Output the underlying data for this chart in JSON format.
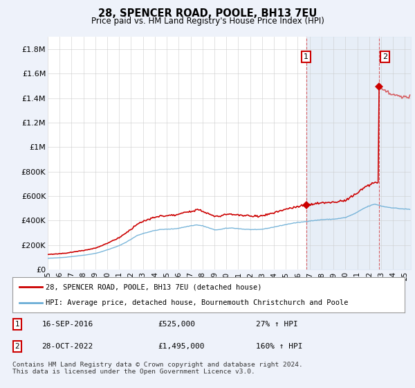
{
  "title": "28, SPENCER ROAD, POOLE, BH13 7EU",
  "subtitle": "Price paid vs. HM Land Registry's House Price Index (HPI)",
  "ylabel_ticks": [
    "£0",
    "£200K",
    "£400K",
    "£600K",
    "£800K",
    "£1M",
    "£1.2M",
    "£1.4M",
    "£1.6M",
    "£1.8M"
  ],
  "ylabel_values": [
    0,
    200000,
    400000,
    600000,
    800000,
    1000000,
    1200000,
    1400000,
    1600000,
    1800000
  ],
  "ylim": [
    0,
    1900000
  ],
  "xlim_start": 1995.0,
  "xlim_end": 2025.5,
  "x_ticks": [
    1995,
    1996,
    1997,
    1998,
    1999,
    2000,
    2001,
    2002,
    2003,
    2004,
    2005,
    2006,
    2007,
    2008,
    2009,
    2010,
    2011,
    2012,
    2013,
    2014,
    2015,
    2016,
    2017,
    2018,
    2019,
    2020,
    2021,
    2022,
    2023,
    2024,
    2025
  ],
  "hpi_line_color": "#6baed6",
  "price_line_color": "#cc0000",
  "sale1_x": 2016.71,
  "sale1_y": 525000,
  "sale2_x": 2022.83,
  "sale2_y": 1495000,
  "sale1_label": "1",
  "sale2_label": "2",
  "legend_line1": "28, SPENCER ROAD, POOLE, BH13 7EU (detached house)",
  "legend_line2": "HPI: Average price, detached house, Bournemouth Christchurch and Poole",
  "annotation1_date": "16-SEP-2016",
  "annotation1_price": "£525,000",
  "annotation1_hpi": "27% ↑ HPI",
  "annotation2_date": "28-OCT-2022",
  "annotation2_price": "£1,495,000",
  "annotation2_hpi": "160% ↑ HPI",
  "footer": "Contains HM Land Registry data © Crown copyright and database right 2024.\nThis data is licensed under the Open Government Licence v3.0.",
  "background_color": "#eef2fa",
  "plot_bg_color": "#ffffff",
  "shade_color": "#dde8f5",
  "grid_color": "#cccccc"
}
